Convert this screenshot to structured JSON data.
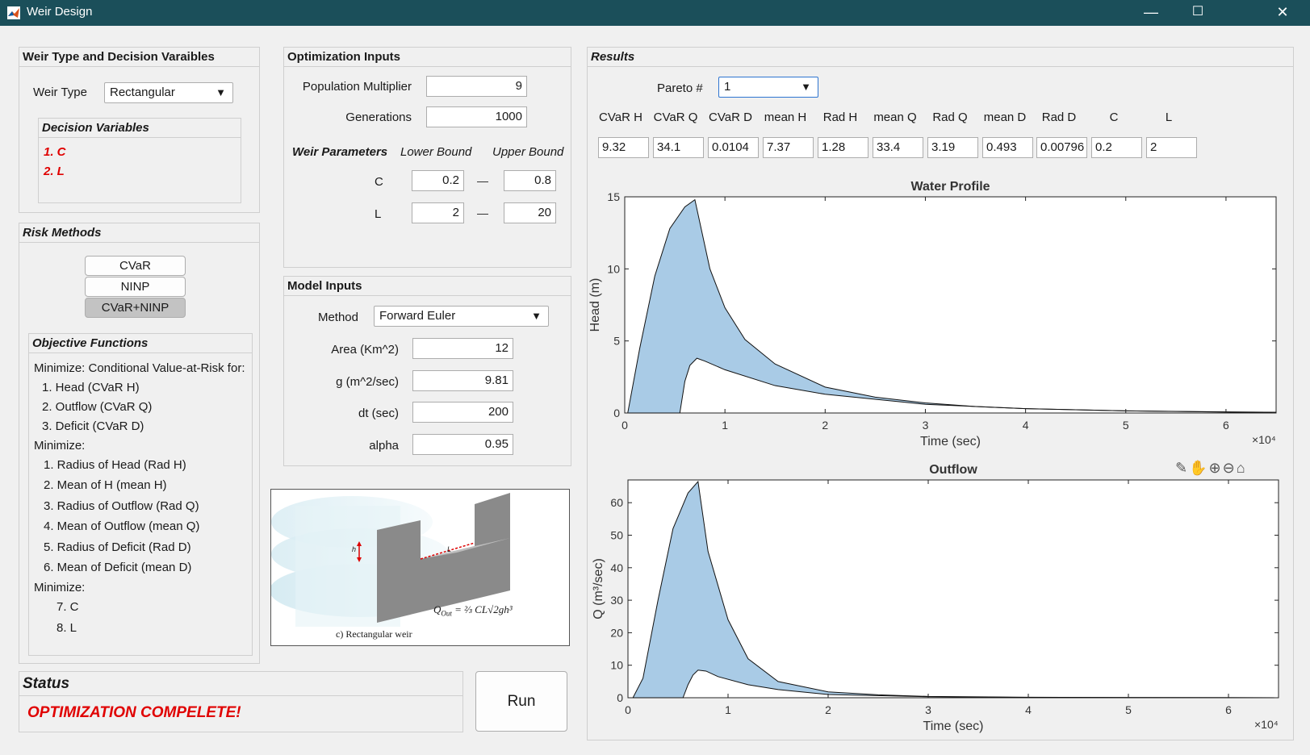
{
  "window": {
    "title": "Weir Design",
    "minimize": "—",
    "maximize": "☐",
    "close": "✕"
  },
  "weir_panel": {
    "title": "Weir Type and Decision Varaibles",
    "weir_type_label": "Weir Type",
    "weir_type_value": "Rectangular",
    "decision_title": "Decision Variables",
    "decision_items": [
      "1. C",
      "2. L"
    ]
  },
  "risk_panel": {
    "title": "Risk Methods",
    "buttons": [
      "CVaR",
      "NINP",
      "CVaR+NINP"
    ],
    "selected": "CVaR+NINP",
    "objectives_title": "Objective Functions",
    "objectives": [
      "Minimize: Conditional Value-at-Risk for:",
      "1. Head (CVaR H)",
      "2. Outflow (CVaR Q)",
      "3. Deficit (CVaR D)",
      "Minimize:",
      "1. Radius of Head (Rad H)",
      "2. Mean of H (mean H)",
      "3. Radius of Outflow (Rad Q)",
      "4. Mean of Outflow (mean Q)",
      "5. Radius of Deficit (Rad D)",
      "6. Mean of Deficit (mean D)",
      "Minimize:",
      "7. C",
      "8. L"
    ]
  },
  "optimization_panel": {
    "title": "Optimization Inputs",
    "population_label": "Population Multiplier",
    "population_value": "9",
    "generations_label": "Generations",
    "generations_value": "1000",
    "weir_params_label": "Weir Parameters",
    "lower_bound_label": "Lower Bound",
    "upper_bound_label": "Upper Bound",
    "params": [
      {
        "name": "C",
        "lower": "0.2",
        "upper": "0.8"
      },
      {
        "name": "L",
        "lower": "2",
        "upper": "20"
      }
    ]
  },
  "model_panel": {
    "title": "Model Inputs",
    "method_label": "Method",
    "method_value": "Forward Euler",
    "area_label": "Area (Km^2)",
    "area_value": "12",
    "g_label": "g (m^2/sec)",
    "g_value": "9.81",
    "dt_label": "dt (sec)",
    "dt_value": "200",
    "alpha_label": "alpha",
    "alpha_value": "0.95"
  },
  "diagram": {
    "caption": "c)   Rectangular weir",
    "h_label": "h",
    "l_label": "L",
    "formula": "Q",
    "formula_sub": "Out",
    "formula_rest": "= ⅔ CL√2gh³"
  },
  "status_panel": {
    "title": "Status",
    "message": "OPTIMIZATION COMPELETE!"
  },
  "run_button": "Run",
  "results": {
    "title": "Results",
    "pareto_label": "Pareto #",
    "pareto_value": "1",
    "columns": [
      "CVaR H",
      "CVaR Q",
      "CVaR D",
      "mean H",
      "Rad H",
      "mean Q",
      "Rad Q",
      "mean D",
      "Rad D",
      "C",
      "L"
    ],
    "values": [
      "9.32",
      "34.1",
      "0.0104",
      "7.37",
      "1.28",
      "33.4",
      "3.19",
      "0.493",
      "0.00796",
      "0.2",
      "2"
    ]
  },
  "colors": {
    "titlebar": "#1b4f5a",
    "fill": "#a9cbe6",
    "status_red": "#e00000"
  },
  "chart_data": [
    {
      "type": "area",
      "title": "Water Profile",
      "xlabel": "Time (sec)",
      "ylabel": "Head (m)",
      "x_exponent_label": "×10⁴",
      "xlim": [
        0,
        6.5
      ],
      "ylim": [
        0,
        15
      ],
      "xticks": [
        0,
        1,
        2,
        3,
        4,
        5,
        6
      ],
      "yticks": [
        0,
        5,
        10,
        15
      ],
      "x_units_multiplier": 10000,
      "series": [
        {
          "x": [
            0.03,
            0.15,
            0.3,
            0.45,
            0.6,
            0.7,
            0.85,
            1.0,
            1.2,
            1.5,
            2.0,
            2.5,
            3.0,
            3.5,
            4.0,
            5.0,
            6.0,
            6.5
          ],
          "values": [
            0,
            4.5,
            9.5,
            12.8,
            14.3,
            14.8,
            10.0,
            7.3,
            5.1,
            3.4,
            1.8,
            1.1,
            0.7,
            0.45,
            0.3,
            0.15,
            0.08,
            0.05
          ]
        },
        {
          "x": [
            0.03,
            0.55,
            0.6,
            0.65,
            0.72,
            0.8,
            1.0,
            1.5,
            2.0,
            3.0,
            4.0,
            5.0,
            6.0,
            6.5
          ],
          "values": [
            0,
            0,
            2.2,
            3.3,
            3.8,
            3.6,
            3.0,
            1.9,
            1.3,
            0.6,
            0.3,
            0.15,
            0.06,
            0.04
          ]
        }
      ]
    },
    {
      "type": "area",
      "title": "Outflow",
      "xlabel": "Time (sec)",
      "ylabel": "Q  (m³/sec)",
      "x_exponent_label": "×10⁴",
      "xlim": [
        0,
        6.5
      ],
      "ylim": [
        0,
        67
      ],
      "xticks": [
        0,
        1,
        2,
        3,
        4,
        5,
        6
      ],
      "yticks": [
        0,
        10,
        20,
        30,
        40,
        50,
        60
      ],
      "x_units_multiplier": 10000,
      "series": [
        {
          "x": [
            0.05,
            0.15,
            0.3,
            0.45,
            0.6,
            0.7,
            0.8,
            1.0,
            1.2,
            1.5,
            2.0,
            2.5,
            3.0,
            4.0,
            5.0,
            6.0,
            6.5
          ],
          "values": [
            0,
            6,
            30,
            52,
            63,
            66.5,
            45,
            24,
            12,
            5,
            1.8,
            0.9,
            0.4,
            0.15,
            0.05,
            0.02,
            0.01
          ]
        },
        {
          "x": [
            0.05,
            0.55,
            0.6,
            0.65,
            0.7,
            0.78,
            0.9,
            1.2,
            1.5,
            2.0,
            3.0,
            4.0,
            6.5
          ],
          "values": [
            0,
            0,
            4,
            7,
            8.5,
            8.2,
            6.5,
            4,
            2.5,
            1.0,
            0.3,
            0.1,
            0.01
          ]
        }
      ]
    }
  ]
}
